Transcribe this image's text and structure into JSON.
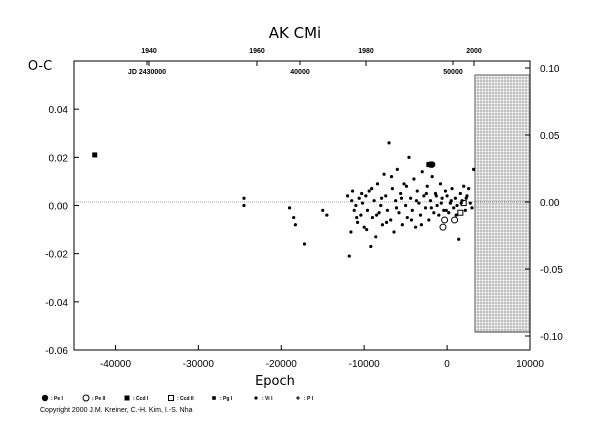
{
  "chart_data": {
    "type": "scatter",
    "title": "AK CMi",
    "ylabel": "O-C",
    "xlabel": "Epoch",
    "xlim": [
      -45000,
      10000
    ],
    "ylim": [
      -0.06,
      0.06
    ],
    "x_ticks": [
      "-40000",
      "-30000",
      "-20000",
      "-10000",
      "0",
      "10000"
    ],
    "y_ticks": [
      "-0.06",
      "-0.04",
      "-0.02",
      "0.00",
      "0.02",
      "0.04"
    ],
    "right_ticks": [
      "-0.10",
      "-0.05",
      "0.00",
      "0.05",
      "0.10"
    ],
    "top_years": [
      "1940",
      "1960",
      "1980",
      "2000"
    ],
    "top_jd": [
      "JD 2430000",
      "40000",
      "50000"
    ],
    "series": [
      {
        "marker": "filled-circle-large",
        "points": [
          [
            -2000,
            0.017
          ],
          [
            -1800,
            0.017
          ]
        ]
      },
      {
        "marker": "open-circle",
        "points": [
          [
            -500,
            -0.009
          ],
          [
            -300,
            -0.006
          ],
          [
            900,
            -0.006
          ]
        ]
      },
      {
        "marker": "filled-square",
        "points": [
          [
            -42500,
            0.021
          ],
          [
            -2200,
            0.017
          ]
        ]
      },
      {
        "marker": "open-square",
        "points": [
          [
            2000,
            0.001
          ],
          [
            1600,
            -0.003
          ]
        ]
      },
      {
        "marker": "small-dot",
        "points": [
          [
            -24500,
            0.003
          ],
          [
            -24500,
            0.0
          ],
          [
            -19000,
            -0.001
          ],
          [
            -18500,
            -0.005
          ],
          [
            -18300,
            -0.008
          ],
          [
            -17200,
            -0.016
          ],
          [
            -15000,
            -0.002
          ],
          [
            -14500,
            -0.004
          ],
          [
            -12000,
            0.004
          ],
          [
            -11800,
            -0.021
          ],
          [
            -11600,
            -0.011
          ],
          [
            -11400,
            0.006
          ],
          [
            -11200,
            -0.002
          ],
          [
            -11000,
            0.0
          ],
          [
            -10800,
            -0.007
          ],
          [
            -10600,
            0.003
          ],
          [
            -10400,
            -0.004
          ],
          [
            -10200,
            0.001
          ],
          [
            -10000,
            -0.009
          ],
          [
            -9800,
            0.004
          ],
          [
            -9600,
            -0.002
          ],
          [
            -9400,
            0.006
          ],
          [
            -9200,
            -0.017
          ],
          [
            -9000,
            -0.005
          ],
          [
            -8800,
            0.002
          ],
          [
            -8600,
            -0.013
          ],
          [
            -8400,
            0.009
          ],
          [
            -8200,
            -0.003
          ],
          [
            -8000,
            0.0
          ],
          [
            -7800,
            -0.008
          ],
          [
            -7600,
            0.013
          ],
          [
            -7400,
            0.004
          ],
          [
            -7200,
            -0.002
          ],
          [
            -7000,
            0.026
          ],
          [
            -6800,
            -0.006
          ],
          [
            -6600,
            0.007
          ],
          [
            -6400,
            -0.011
          ],
          [
            -6200,
            0.002
          ],
          [
            -6000,
            0.015
          ],
          [
            -5800,
            -0.003
          ],
          [
            -5600,
            0.005
          ],
          [
            -5400,
            -0.008
          ],
          [
            -5200,
            0.009
          ],
          [
            -5000,
            0.0
          ],
          [
            -4800,
            -0.005
          ],
          [
            -4600,
            0.02
          ],
          [
            -4400,
            0.003
          ],
          [
            -4200,
            -0.002
          ],
          [
            -4000,
            0.011
          ],
          [
            -3800,
            -0.009
          ],
          [
            -3600,
            0.006
          ],
          [
            -3400,
            0.001
          ],
          [
            -3200,
            -0.004
          ],
          [
            -3000,
            0.014
          ],
          [
            -2800,
            0.004
          ],
          [
            -2600,
            -0.001
          ],
          [
            -2400,
            0.008
          ],
          [
            -2200,
            -0.006
          ],
          [
            -2000,
            0.002
          ],
          [
            -1800,
            0.012
          ],
          [
            -1600,
            -0.003
          ],
          [
            -1400,
            0.005
          ],
          [
            -1200,
            0.0
          ],
          [
            -1000,
            -0.004
          ],
          [
            -800,
            0.009
          ],
          [
            -600,
            0.003
          ],
          [
            -400,
            -0.002
          ],
          [
            -200,
            0.006
          ],
          [
            0,
            0.004
          ],
          [
            200,
            -0.003
          ],
          [
            400,
            0.001
          ],
          [
            600,
            0.007
          ],
          [
            800,
            -0.001
          ],
          [
            1000,
            0.003
          ],
          [
            1200,
            0.0
          ],
          [
            1400,
            -0.014
          ],
          [
            1600,
            0.005
          ],
          [
            1800,
            0.002
          ],
          [
            2000,
            0.008
          ],
          [
            2200,
            -0.002
          ],
          [
            2400,
            0.004
          ],
          [
            2600,
            0.007
          ],
          [
            2800,
            0.001
          ],
          [
            3000,
            -0.001
          ],
          [
            3200,
            0.015
          ],
          [
            -11500,
            0.002
          ],
          [
            -10900,
            -0.005
          ],
          [
            -10300,
            0.005
          ],
          [
            -9700,
            -0.01
          ],
          [
            -9100,
            0.007
          ],
          [
            -8500,
            -0.004
          ],
          [
            -7900,
            0.003
          ],
          [
            -7300,
            -0.007
          ],
          [
            -6700,
            0.012
          ],
          [
            -6100,
            -0.001
          ],
          [
            -5500,
            0.003
          ],
          [
            -4900,
            0.008
          ],
          [
            -4300,
            -0.006
          ],
          [
            -3700,
            0.002
          ],
          [
            -3100,
            -0.008
          ],
          [
            -2500,
            0.005
          ],
          [
            -1900,
            -0.001
          ],
          [
            -1300,
            0.004
          ],
          [
            -700,
            0.001
          ],
          [
            -100,
            -0.002
          ],
          [
            500,
            0.002
          ],
          [
            1100,
            -0.004
          ],
          [
            1700,
            0.001
          ],
          [
            2300,
            0.003
          ]
        ]
      }
    ],
    "legend": [
      {
        "marker": "filled-circle-large",
        "label": ": Pe I"
      },
      {
        "marker": "open-circle",
        "label": ": Pe II"
      },
      {
        "marker": "filled-square",
        "label": ": Ccd I"
      },
      {
        "marker": "open-square",
        "label": ": Ccd II"
      },
      {
        "marker": "filled-square-small",
        "label": ": Pg I"
      },
      {
        "marker": "small-dot",
        "label": ": Vi I"
      },
      {
        "marker": "plus",
        "label": ": P I"
      }
    ],
    "hatched_region_x": [
      2600,
      8500
    ]
  },
  "copyright": "Copyright 2000 J.M. Kreiner, C.-H. Kim, I.-S. Nha"
}
